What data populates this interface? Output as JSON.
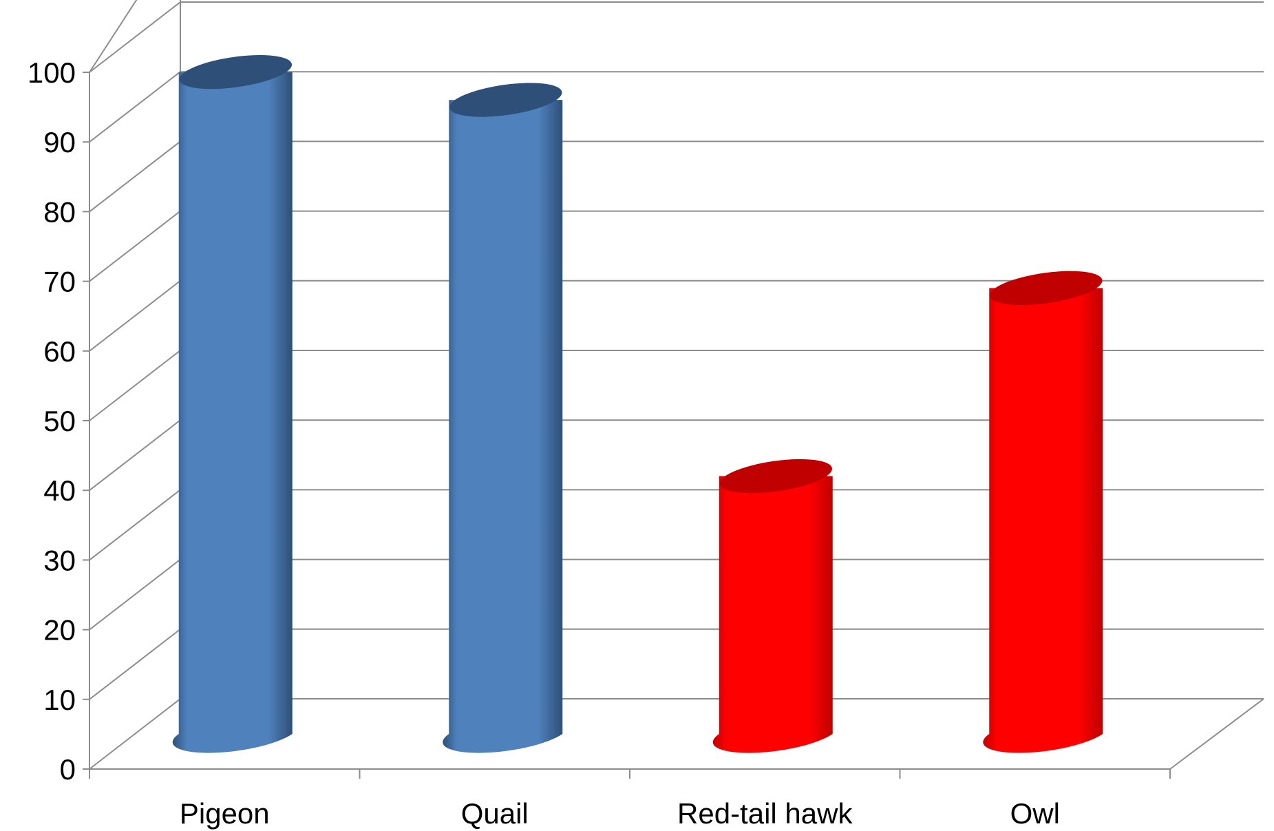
{
  "chart_data": {
    "type": "bar",
    "style": "3d-cylinder",
    "categories": [
      "Pigeon",
      "Quail",
      "Red-tail hawk",
      "Owl"
    ],
    "values": [
      95,
      91,
      37,
      64
    ],
    "bar_colors": [
      "#4F81BD",
      "#4F81BD",
      "#FF0000",
      "#FF0000"
    ],
    "bar_dark_colors": [
      "#2E4F78",
      "#2E4F78",
      "#C00000",
      "#C00000"
    ],
    "ylim": [
      0,
      100
    ],
    "yticks": [
      "0",
      "10",
      "20",
      "30",
      "40",
      "50",
      "60",
      "70",
      "80",
      "90",
      "100"
    ],
    "grid": true,
    "legend": "none",
    "title": "",
    "xlabel": "",
    "ylabel": ""
  }
}
